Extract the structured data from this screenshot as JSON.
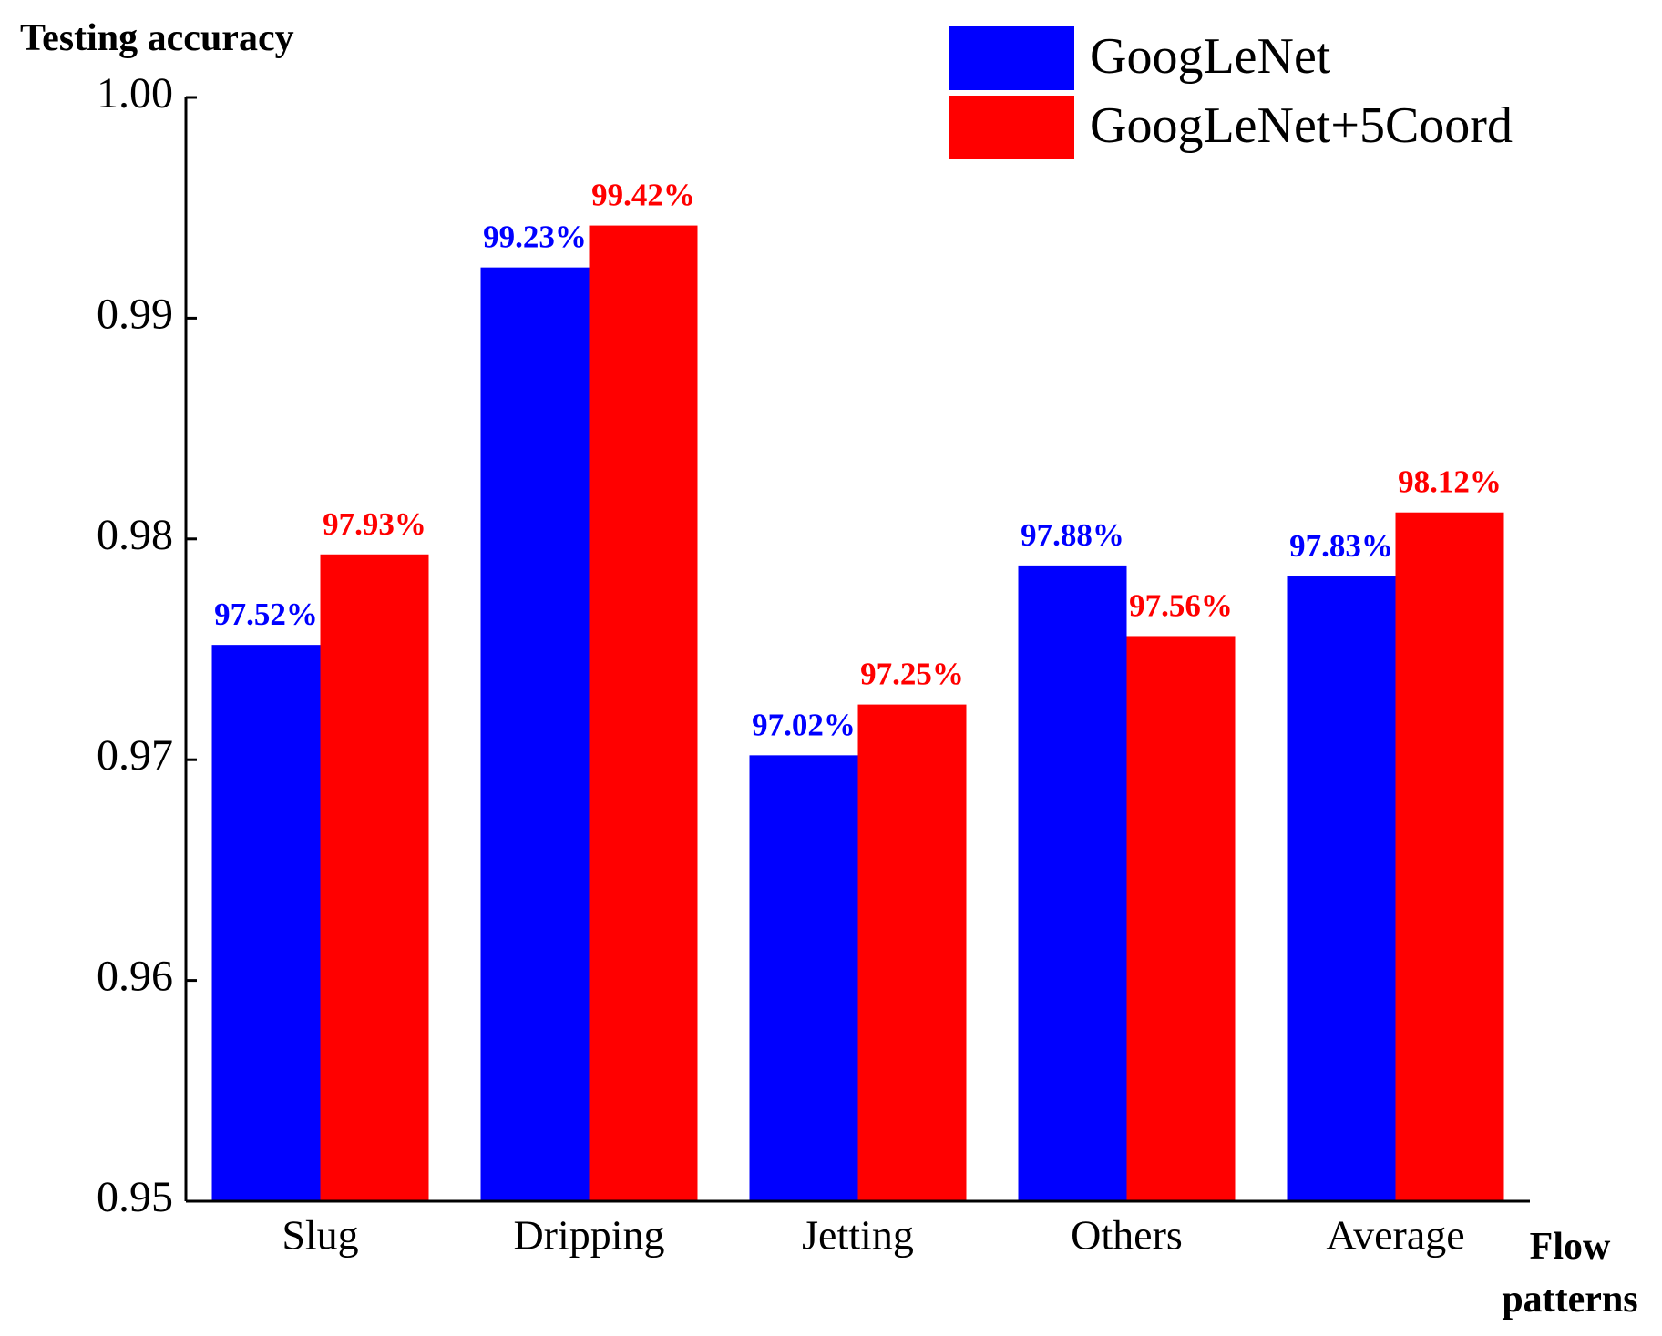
{
  "chart_data": {
    "type": "bar",
    "y_label": "Testing accuracy",
    "x_label": "Flow patterns",
    "categories": [
      "Slug",
      "Dripping",
      "Jetting",
      "Others",
      "Average"
    ],
    "series": [
      {
        "name": "GoogLeNet",
        "color": "#0000ff",
        "values": [
          0.9752,
          0.9923,
          0.9702,
          0.9788,
          0.9783
        ],
        "value_labels": [
          "97.52%",
          "99.23%",
          "97.02%",
          "97.88%",
          "97.83%"
        ]
      },
      {
        "name": "GoogLeNet+5Coord",
        "color": "#ff0000",
        "values": [
          0.9793,
          0.9942,
          0.9725,
          0.9756,
          0.9812
        ],
        "value_labels": [
          "97.93%",
          "99.42%",
          "97.25%",
          "97.56%",
          "98.12%"
        ]
      }
    ],
    "ylim": [
      0.95,
      1.0
    ],
    "yticks": [
      0.95,
      0.96,
      0.97,
      0.98,
      0.99,
      {
        "value": 1.0,
        "label": "1.00"
      }
    ],
    "legend": "top-right"
  }
}
